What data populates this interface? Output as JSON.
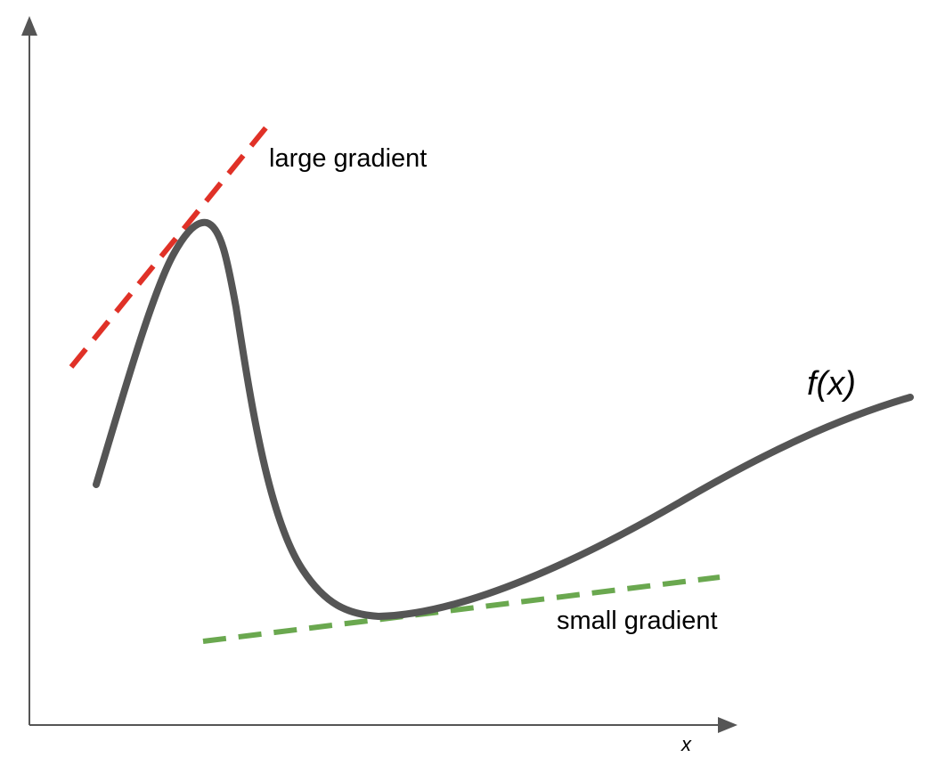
{
  "diagram": {
    "function_label": "f(x)",
    "x_axis_label": "x",
    "annotations": {
      "large_gradient": "large gradient",
      "small_gradient": "small gradient"
    },
    "colors": {
      "axis": "#555555",
      "curve": "#555555",
      "large_gradient_tangent": "#e03127",
      "small_gradient_tangent": "#6aa84f"
    }
  }
}
